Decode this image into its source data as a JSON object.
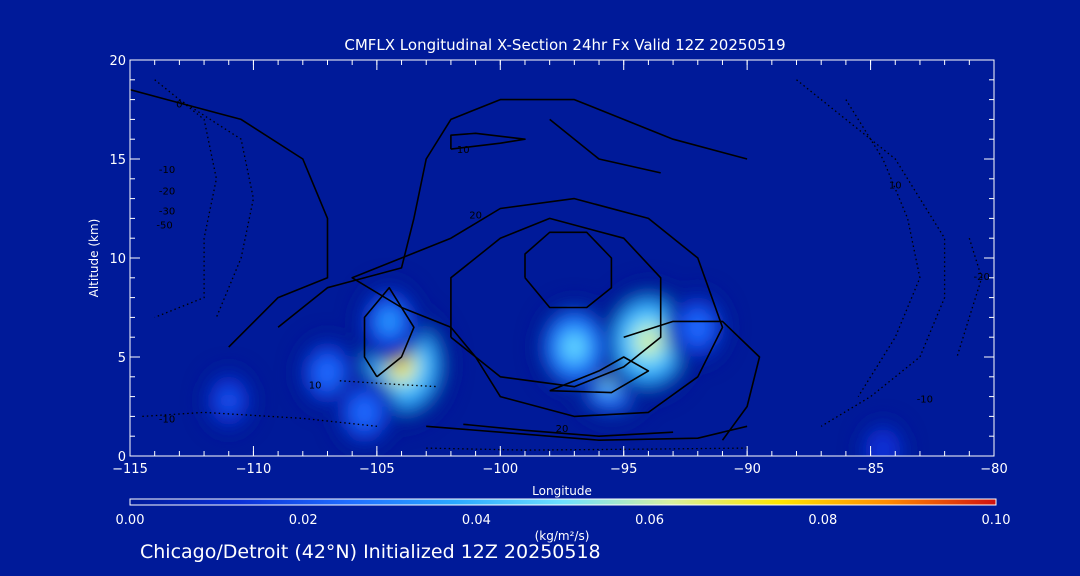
{
  "chart_data": {
    "type": "heatmap",
    "title": "CMFLX Longitudinal X-Section 24hr  Fx Valid 12Z 20250519",
    "xlabel": "Longitude",
    "ylabel": "Altitude (km)",
    "xlim": [
      -115,
      -80
    ],
    "ylim": [
      0,
      20
    ],
    "x_ticks": [
      -115,
      -110,
      -105,
      -100,
      -95,
      -90,
      -85,
      -80
    ],
    "y_ticks": [
      0,
      5,
      10,
      15,
      20
    ],
    "colorbar": {
      "label": "(kg/m²/s)",
      "range": [
        0.0,
        0.1
      ],
      "ticks": [
        "0.00",
        "0.02",
        "0.04",
        "0.06",
        "0.08",
        "0.10"
      ]
    },
    "shaded_field": [
      {
        "lon": -104,
        "alt": 4.6,
        "value": 0.07
      },
      {
        "lon": -104.5,
        "alt": 6.8,
        "value": 0.035
      },
      {
        "lon": -107,
        "alt": 4.2,
        "value": 0.03
      },
      {
        "lon": -105.5,
        "alt": 2.2,
        "value": 0.03
      },
      {
        "lon": -111,
        "alt": 2.8,
        "value": 0.02
      },
      {
        "lon": -95.5,
        "alt": 4.5,
        "value": 0.062
      },
      {
        "lon": -94,
        "alt": 5.8,
        "value": 0.065
      },
      {
        "lon": -97,
        "alt": 5.5,
        "value": 0.045
      },
      {
        "lon": -92,
        "alt": 6.5,
        "value": 0.03
      },
      {
        "lon": -84.5,
        "alt": 0.3,
        "value": 0.015
      }
    ],
    "contours": {
      "solid": [
        [
          [
            -111,
            5.5
          ],
          [
            -109,
            8
          ],
          [
            -107,
            9
          ],
          [
            -107,
            12
          ],
          [
            -108,
            15
          ],
          [
            -110.5,
            17
          ],
          [
            -113.5,
            18
          ],
          [
            -115,
            18.5
          ]
        ],
        [
          [
            -109,
            6.5
          ],
          [
            -107,
            8.5
          ],
          [
            -104,
            9.5
          ],
          [
            -103.5,
            12
          ],
          [
            -103,
            15
          ],
          [
            -102,
            17
          ],
          [
            -100,
            18
          ],
          [
            -97,
            18
          ],
          [
            -93,
            16
          ],
          [
            -90,
            15
          ]
        ],
        [
          [
            -104,
            7.5
          ],
          [
            -102,
            6.5
          ],
          [
            -101,
            5
          ],
          [
            -100,
            3
          ],
          [
            -97,
            2
          ],
          [
            -94,
            2.2
          ],
          [
            -92,
            4
          ],
          [
            -91,
            6.5
          ],
          [
            -92,
            10
          ],
          [
            -94,
            12
          ],
          [
            -97,
            13
          ],
          [
            -100,
            12.5
          ],
          [
            -102,
            11
          ],
          [
            -104,
            10
          ],
          [
            -106,
            9
          ],
          [
            -104,
            7.5
          ]
        ],
        [
          [
            -102,
            6
          ],
          [
            -100,
            4
          ],
          [
            -97,
            3.5
          ],
          [
            -95,
            4.5
          ],
          [
            -93.5,
            6
          ],
          [
            -93.5,
            9
          ],
          [
            -95,
            11
          ],
          [
            -98,
            12
          ],
          [
            -100,
            11
          ],
          [
            -102,
            9
          ],
          [
            -102,
            6
          ]
        ],
        [
          [
            -99,
            9
          ],
          [
            -98,
            7.5
          ],
          [
            -96.5,
            7.5
          ],
          [
            -95.5,
            8.5
          ],
          [
            -95.5,
            10
          ],
          [
            -96.5,
            11.3
          ],
          [
            -98,
            11.3
          ],
          [
            -99,
            10.2
          ],
          [
            -99,
            9
          ]
        ],
        [
          [
            -102,
            15.5
          ],
          [
            -100,
            15.8
          ],
          [
            -99,
            16
          ],
          [
            -101,
            16.3
          ],
          [
            -102,
            16.2
          ],
          [
            -102,
            15.5
          ]
        ],
        [
          [
            -105,
            4
          ],
          [
            -104,
            5
          ],
          [
            -103.5,
            6.5
          ],
          [
            -104.5,
            8.5
          ],
          [
            -105.5,
            7
          ],
          [
            -105.5,
            5
          ],
          [
            -105,
            4
          ]
        ],
        [
          [
            -98,
            3.3
          ],
          [
            -96,
            4.3
          ],
          [
            -95,
            5
          ],
          [
            -94,
            4.3
          ],
          [
            -95.5,
            3.2
          ],
          [
            -98,
            3.3
          ]
        ],
        [
          [
            -95,
            6
          ],
          [
            -93,
            6.8
          ],
          [
            -91,
            6.8
          ],
          [
            -89.5,
            5
          ],
          [
            -90,
            2.5
          ],
          [
            -91,
            0.8
          ]
        ],
        [
          [
            -103,
            1.5
          ],
          [
            -100,
            1.2
          ],
          [
            -96,
            0.8
          ],
          [
            -92,
            0.9
          ],
          [
            -90,
            1.5
          ]
        ],
        [
          [
            -101.5,
            1.6
          ],
          [
            -99,
            1.3
          ],
          [
            -96,
            1
          ],
          [
            -93,
            1.2
          ]
        ],
        [
          [
            -98,
            17
          ],
          [
            -96,
            15
          ],
          [
            -93.5,
            14.3
          ]
        ]
      ],
      "dotted": [
        [
          [
            -114,
            19
          ],
          [
            -112,
            17
          ],
          [
            -111.5,
            14
          ],
          [
            -112,
            11
          ],
          [
            -112,
            8
          ],
          [
            -114,
            7
          ]
        ],
        [
          [
            -113,
            18
          ],
          [
            -110.5,
            16
          ],
          [
            -110,
            13
          ],
          [
            -110.5,
            10
          ],
          [
            -111.5,
            7
          ]
        ],
        [
          [
            -88,
            19
          ],
          [
            -86,
            17
          ],
          [
            -84,
            15
          ],
          [
            -83,
            13
          ],
          [
            -82,
            11
          ],
          [
            -82,
            8
          ],
          [
            -83,
            5
          ],
          [
            -85,
            3
          ],
          [
            -87,
            1.5
          ]
        ],
        [
          [
            -86,
            18
          ],
          [
            -84.5,
            15
          ],
          [
            -83.5,
            12
          ],
          [
            -83,
            9
          ],
          [
            -84,
            6
          ],
          [
            -85.5,
            3
          ]
        ],
        [
          [
            -81,
            11
          ],
          [
            -80.5,
            9
          ],
          [
            -81,
            7
          ],
          [
            -81.5,
            5
          ]
        ],
        [
          [
            -114.5,
            2
          ],
          [
            -112,
            2.2
          ],
          [
            -108,
            1.9
          ],
          [
            -105,
            1.5
          ]
        ],
        [
          [
            -106.5,
            3.8
          ],
          [
            -104,
            3.6
          ],
          [
            -102.5,
            3.5
          ]
        ],
        [
          [
            -103,
            0.4
          ],
          [
            -99,
            0.3
          ],
          [
            -94,
            0.35
          ],
          [
            -90,
            0.4
          ]
        ]
      ]
    },
    "contour_labels": [
      {
        "text": "0",
        "lon": -113,
        "alt": 17.6
      },
      {
        "text": "-10",
        "lon": -113.5,
        "alt": 14.3
      },
      {
        "text": "-20",
        "lon": -113.5,
        "alt": 13.2
      },
      {
        "text": "-30",
        "lon": -113.5,
        "alt": 12.2
      },
      {
        "text": "-50",
        "lon": -113.6,
        "alt": 11.5
      },
      {
        "text": "10",
        "lon": -101.5,
        "alt": 15.3
      },
      {
        "text": "20",
        "lon": -101,
        "alt": 12
      },
      {
        "text": "10",
        "lon": -107.5,
        "alt": 3.4
      },
      {
        "text": "-10",
        "lon": -113.5,
        "alt": 1.7
      },
      {
        "text": "20",
        "lon": -97.5,
        "alt": 1.2
      },
      {
        "text": "10",
        "lon": -84,
        "alt": 13.5
      },
      {
        "text": "-10",
        "lon": -82.8,
        "alt": 2.7
      },
      {
        "text": "-20",
        "lon": -80.5,
        "alt": 8.9
      }
    ]
  },
  "colors": {
    "background": "#001a99",
    "colormap": [
      "#001a99",
      "#0a2fd6",
      "#1f6cff",
      "#2aa8ff",
      "#6ee0ff",
      "#d8f0a0",
      "#ffe600",
      "#ff8a00",
      "#d01010"
    ]
  },
  "footer": {
    "text": "Chicago/Detroit (42°N) Initialized 12Z 20250518"
  }
}
